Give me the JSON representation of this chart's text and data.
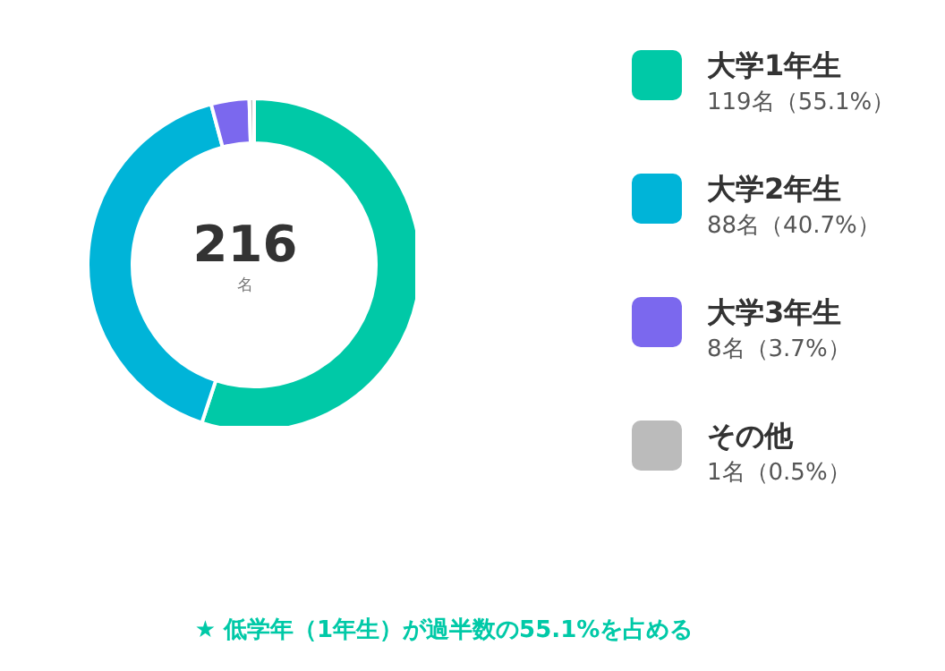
{
  "chart_data": {
    "type": "donut",
    "categories": [
      "大学1年生",
      "大学2年生",
      "大学3年生",
      "その他"
    ],
    "values": [
      119,
      88,
      8,
      1
    ],
    "colors": [
      "#00c9a7",
      "#00b4d8",
      "#7b68ee",
      "#bbbbbb"
    ],
    "value_labels": [
      "119名（55.1%）",
      "88名（40.7%）",
      "8名（3.7%）",
      "1名（0.5%）"
    ],
    "legend": "right",
    "annotations": [
      "216",
      "名",
      "★ 低学年（1年生）が過半数の55.1%を占める"
    ]
  }
}
